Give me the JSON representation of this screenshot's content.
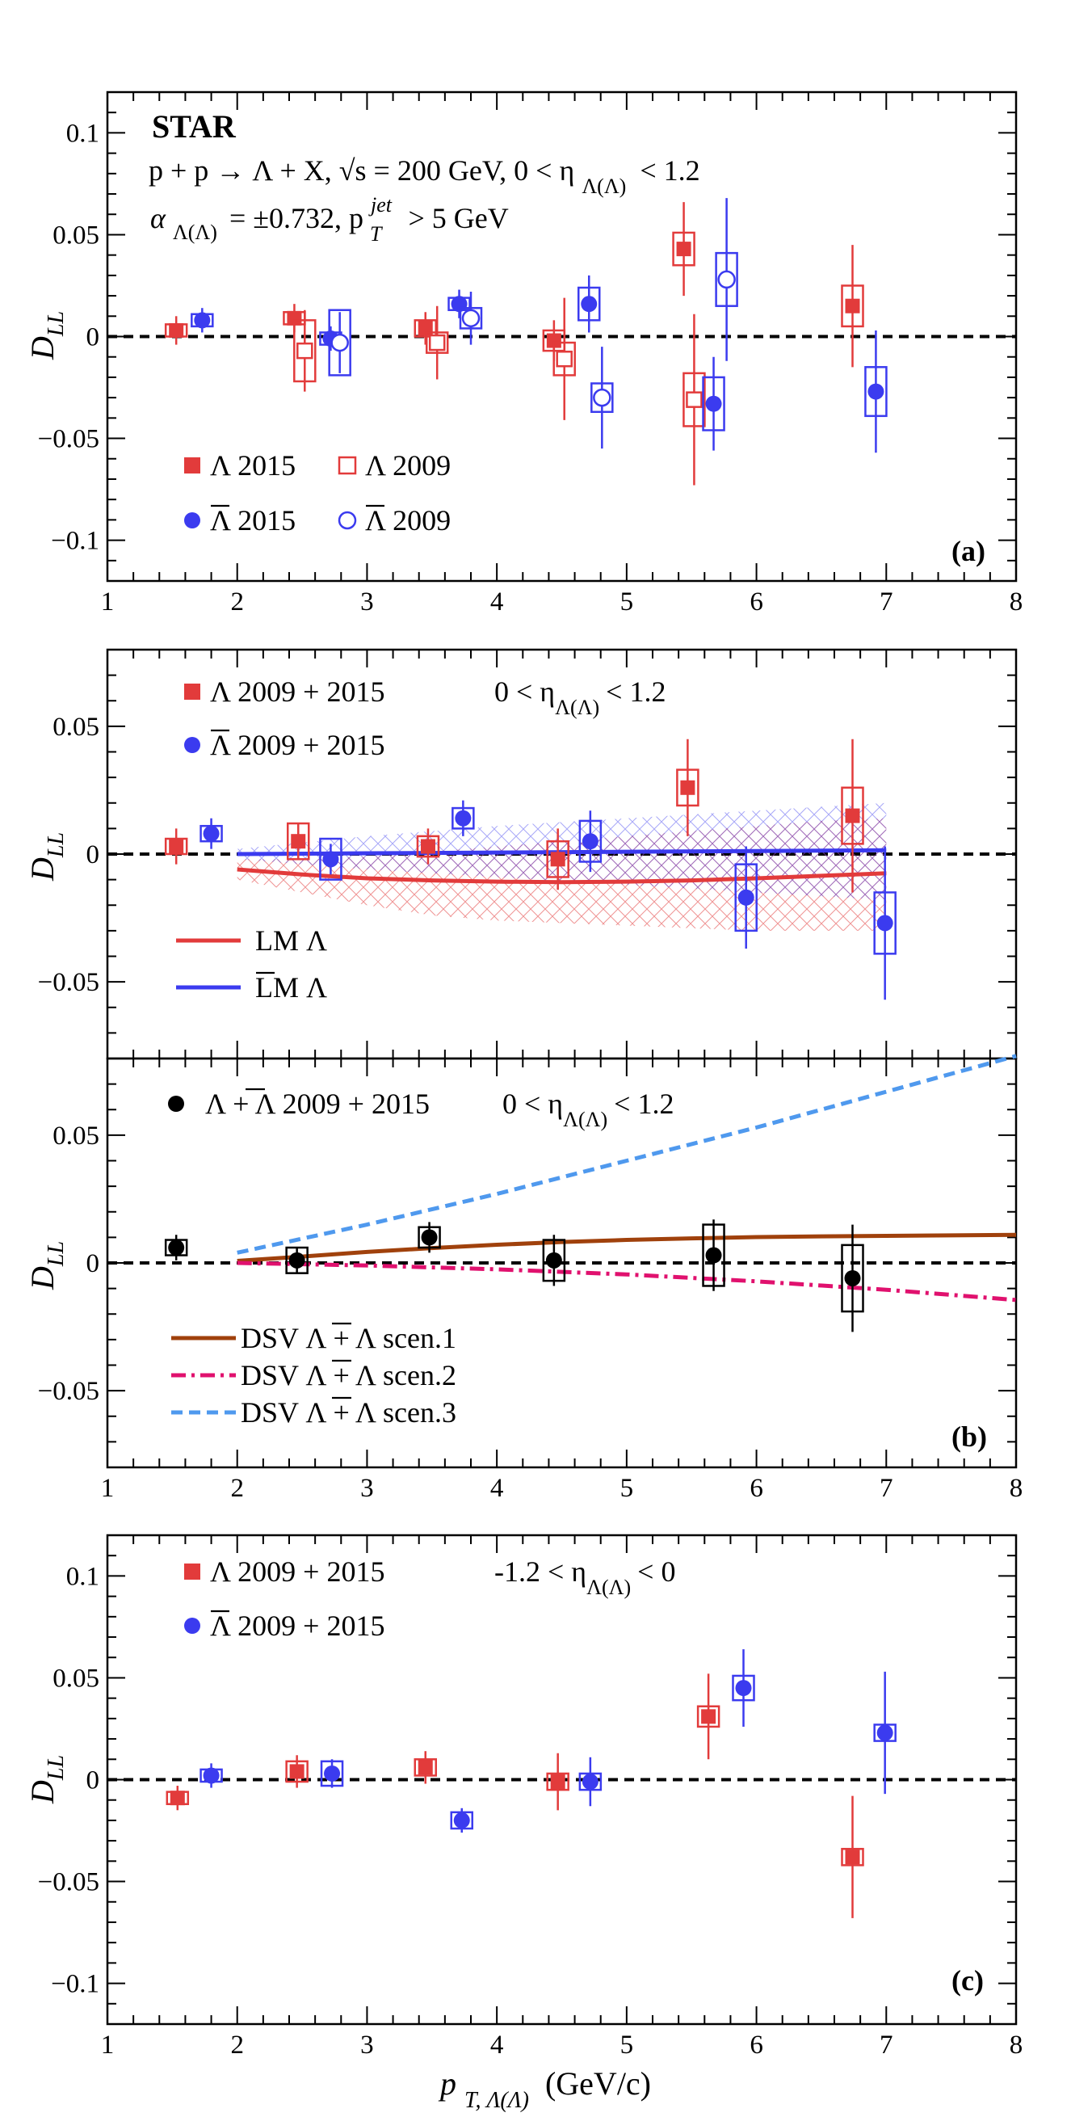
{
  "figure": {
    "experiment_label": "STAR",
    "reaction_label": "p + p → Λ + X, √s = 200 GeV, 0 < η",
    "reaction_label_sub": "Λ(Λ)",
    "reaction_label_end": "< 1.2",
    "analyzing_power_label": "α",
    "analyzing_power_sub": "Λ(Λ)",
    "analyzing_power_text": "= ±0.732, p",
    "jet_label_sup": "jet",
    "jet_label_sub": "T",
    "jet_label_end": "> 5 GeV",
    "xlabel": "p",
    "xlabel_sub": "T, Λ(Λ)",
    "xlabel_unit": "(GeV/c)",
    "ylabel": "D",
    "ylabel_sub": "LL",
    "colors": {
      "lambda": "#e23b3b",
      "antilambda": "#3b3bef",
      "combined": "#000000",
      "lm_lambda": "#e23b3b",
      "lm_antilambda": "#3b3bef",
      "dsv1": "#a0410c",
      "dsv2": "#e0116e",
      "dsv3": "#4f99ee"
    }
  },
  "chart_data": [
    {
      "type": "scatter",
      "panel": "(a)",
      "xlim": [
        1,
        8
      ],
      "ylim": [
        -0.12,
        0.12
      ],
      "x_ticks": [
        1,
        2,
        3,
        4,
        5,
        6,
        7,
        8
      ],
      "y_ticks": [
        -0.1,
        -0.05,
        0,
        0.05,
        0.1
      ],
      "y_tick_labels": [
        "−0.1",
        "−0.05",
        "0",
        "0.05",
        "0.1"
      ],
      "series": [
        {
          "name": "Λ 2015",
          "marker": "filled-square",
          "color": "#e23b3b",
          "points": [
            {
              "x": 1.53,
              "y": 0.003,
              "err": 0.007,
              "sys": 0.003
            },
            {
              "x": 2.44,
              "y": 0.009,
              "err": 0.007,
              "sys": 0.003
            },
            {
              "x": 3.45,
              "y": 0.004,
              "err": 0.008,
              "sys": 0.004
            },
            {
              "x": 4.44,
              "y": -0.002,
              "err": 0.01,
              "sys": 0.005
            },
            {
              "x": 5.44,
              "y": 0.043,
              "err": 0.023,
              "sys": 0.008
            },
            {
              "x": 6.74,
              "y": 0.015,
              "err": 0.03,
              "sys": 0.01
            }
          ]
        },
        {
          "name": "Λ 2009",
          "marker": "open-square",
          "color": "#e23b3b",
          "points": [
            {
              "x": 2.52,
              "y": -0.007,
              "err": 0.02,
              "sys": 0.015
            },
            {
              "x": 3.54,
              "y": -0.003,
              "err": 0.018,
              "sys": 0.005
            },
            {
              "x": 4.52,
              "y": -0.011,
              "err": 0.03,
              "sys": 0.008
            },
            {
              "x": 5.52,
              "y": -0.031,
              "err": 0.042,
              "sys": 0.013
            }
          ]
        },
        {
          "name": "Λ 2015",
          "marker": "filled-circle",
          "color": "#3b3bef",
          "overline": true,
          "points": [
            {
              "x": 1.73,
              "y": 0.008,
              "err": 0.006,
              "sys": 0.003
            },
            {
              "x": 2.72,
              "y": -0.001,
              "err": 0.006,
              "sys": 0.003
            },
            {
              "x": 3.71,
              "y": 0.016,
              "err": 0.007,
              "sys": 0.003
            },
            {
              "x": 4.71,
              "y": 0.016,
              "err": 0.014,
              "sys": 0.008
            },
            {
              "x": 5.67,
              "y": -0.033,
              "err": 0.023,
              "sys": 0.013
            },
            {
              "x": 6.92,
              "y": -0.027,
              "err": 0.03,
              "sys": 0.012
            }
          ]
        },
        {
          "name": "Λ 2009",
          "marker": "open-circle",
          "color": "#3b3bef",
          "overline": true,
          "points": [
            {
              "x": 2.79,
              "y": -0.003,
              "err": 0.015,
              "sys": 0.016
            },
            {
              "x": 3.8,
              "y": 0.009,
              "err": 0.013,
              "sys": 0.005
            },
            {
              "x": 4.81,
              "y": -0.03,
              "err": 0.025,
              "sys": 0.007
            },
            {
              "x": 5.77,
              "y": 0.028,
              "err": 0.04,
              "sys": 0.013
            }
          ]
        }
      ],
      "legend_placement": "bottom-left"
    },
    {
      "type": "scatter",
      "panel": "(b) upper",
      "xlim": [
        1,
        8
      ],
      "ylim": [
        -0.08,
        0.08
      ],
      "y_ticks": [
        -0.05,
        0,
        0.05
      ],
      "y_tick_labels": [
        "−0.05",
        "0",
        "0.05"
      ],
      "eta_label": "0 < η",
      "eta_sub": "Λ(Λ)",
      "eta_end": "< 1.2",
      "series": [
        {
          "name": "Λ 2009 + 2015",
          "marker": "filled-square",
          "color": "#e23b3b",
          "points": [
            {
              "x": 1.53,
              "y": 0.003,
              "err": 0.007,
              "sys": 0.003
            },
            {
              "x": 2.47,
              "y": 0.005,
              "err": 0.007,
              "sys": 0.007
            },
            {
              "x": 3.47,
              "y": 0.003,
              "err": 0.007,
              "sys": 0.004
            },
            {
              "x": 4.47,
              "y": -0.002,
              "err": 0.012,
              "sys": 0.007
            },
            {
              "x": 5.47,
              "y": 0.026,
              "err": 0.019,
              "sys": 0.007
            },
            {
              "x": 6.74,
              "y": 0.015,
              "err": 0.03,
              "sys": 0.011
            }
          ]
        },
        {
          "name": "Λ 2009 + 2015",
          "marker": "filled-circle",
          "color": "#3b3bef",
          "overline": true,
          "points": [
            {
              "x": 1.8,
              "y": 0.008,
              "err": 0.006,
              "sys": 0.003
            },
            {
              "x": 2.72,
              "y": -0.002,
              "err": 0.006,
              "sys": 0.008
            },
            {
              "x": 3.74,
              "y": 0.014,
              "err": 0.007,
              "sys": 0.004
            },
            {
              "x": 4.72,
              "y": 0.005,
              "err": 0.012,
              "sys": 0.008
            },
            {
              "x": 5.92,
              "y": -0.017,
              "err": 0.02,
              "sys": 0.013
            },
            {
              "x": 6.99,
              "y": -0.027,
              "err": 0.03,
              "sys": 0.012
            }
          ]
        }
      ],
      "curves": [
        {
          "name": "LM Λ",
          "color": "#e23b3b",
          "x": [
            2.0,
            2.5,
            3.0,
            3.5,
            4.0,
            4.5,
            5.0,
            5.5,
            6.0,
            6.5,
            7.0
          ],
          "y": [
            -0.006,
            -0.008,
            -0.0095,
            -0.0103,
            -0.0108,
            -0.011,
            -0.0108,
            -0.0103,
            -0.0095,
            -0.0085,
            -0.0075
          ],
          "band_low": [
            -0.01,
            -0.015,
            -0.02,
            -0.024,
            -0.026,
            -0.027,
            -0.028,
            -0.029,
            -0.03,
            -0.03,
            -0.03
          ],
          "band_high": [
            -0.002,
            -0.002,
            -0.001,
            0.001,
            0.003,
            0.005,
            0.007,
            0.009,
            0.011,
            0.013,
            0.014
          ]
        },
        {
          "name": "LM Λ",
          "color": "#3b3bef",
          "overline": true,
          "x": [
            2.0,
            3.0,
            4.0,
            5.0,
            6.0,
            7.0
          ],
          "y": [
            0.0,
            0.0003,
            0.0006,
            0.0009,
            0.0012,
            0.0015
          ],
          "band_low": [
            -0.002,
            -0.006,
            -0.009,
            -0.012,
            -0.015,
            -0.018
          ],
          "band_high": [
            0.002,
            0.007,
            0.011,
            0.014,
            0.017,
            0.02
          ]
        }
      ],
      "legend_placement": "top-left and bottom-left"
    },
    {
      "type": "scatter",
      "panel": "(b)",
      "xlim": [
        1,
        8
      ],
      "ylim": [
        -0.08,
        0.08
      ],
      "x_ticks": [
        1,
        2,
        3,
        4,
        5,
        6,
        7,
        8
      ],
      "y_ticks": [
        -0.05,
        0,
        0.05
      ],
      "y_tick_labels": [
        "−0.05",
        "0",
        "0.05"
      ],
      "legend_label": "Λ + Λ 2009 + 2015",
      "eta_label": "0 < η",
      "eta_sub": "Λ(Λ)",
      "eta_end": "< 1.2",
      "series": [
        {
          "name": "Λ + Λ 2009 + 2015",
          "marker": "filled-circle",
          "color": "#000000",
          "points": [
            {
              "x": 1.53,
              "y": 0.006,
              "err": 0.005,
              "sys": 0.003
            },
            {
              "x": 2.46,
              "y": 0.001,
              "err": 0.005,
              "sys": 0.005
            },
            {
              "x": 3.48,
              "y": 0.01,
              "err": 0.006,
              "sys": 0.004
            },
            {
              "x": 4.44,
              "y": 0.001,
              "err": 0.01,
              "sys": 0.008
            },
            {
              "x": 5.67,
              "y": 0.003,
              "err": 0.014,
              "sys": 0.012
            },
            {
              "x": 6.74,
              "y": -0.006,
              "err": 0.021,
              "sys": 0.013
            }
          ]
        }
      ],
      "curves": [
        {
          "name": "DSV Λ + Λ scen.1",
          "style": "solid",
          "color": "#a0410c",
          "x": [
            2.0,
            2.5,
            3.0,
            3.5,
            4.0,
            4.5,
            5.0,
            5.5,
            6.0,
            6.5,
            7.0,
            7.5,
            8.0
          ],
          "y": [
            0.0008,
            0.0025,
            0.0043,
            0.0058,
            0.0071,
            0.0082,
            0.009,
            0.0096,
            0.0101,
            0.0104,
            0.0106,
            0.0108,
            0.011
          ]
        },
        {
          "name": "DSV Λ + Λ scen.2",
          "style": "dash-dot",
          "color": "#e0116e",
          "x": [
            2.0,
            3.0,
            4.0,
            5.0,
            6.0,
            7.0,
            8.0
          ],
          "y": [
            0.0,
            -0.001,
            -0.0025,
            -0.0045,
            -0.0072,
            -0.0105,
            -0.0145
          ]
        },
        {
          "name": "DSV Λ + Λ scen.3",
          "style": "dashed",
          "color": "#4f99ee",
          "x": [
            2.0,
            3.0,
            4.0,
            5.0,
            6.0,
            7.0,
            8.0
          ],
          "y": [
            0.004,
            0.015,
            0.027,
            0.04,
            0.053,
            0.067,
            0.081
          ]
        }
      ],
      "legend_placement": "bottom-left"
    },
    {
      "type": "scatter",
      "panel": "(c)",
      "xlim": [
        1,
        8
      ],
      "ylim": [
        -0.12,
        0.12
      ],
      "x_ticks": [
        1,
        2,
        3,
        4,
        5,
        6,
        7,
        8
      ],
      "y_ticks": [
        -0.1,
        -0.05,
        0,
        0.05,
        0.1
      ],
      "y_tick_labels": [
        "−0.1",
        "−0.05",
        "0",
        "0.05",
        "0.1"
      ],
      "eta_label": "-1.2 < η",
      "eta_sub": "Λ(Λ)",
      "eta_end": "< 0",
      "series": [
        {
          "name": "Λ 2009 + 2015",
          "marker": "filled-square",
          "color": "#e23b3b",
          "points": [
            {
              "x": 1.54,
              "y": -0.009,
              "err": 0.006,
              "sys": 0.003
            },
            {
              "x": 2.46,
              "y": 0.004,
              "err": 0.008,
              "sys": 0.005
            },
            {
              "x": 3.45,
              "y": 0.006,
              "err": 0.008,
              "sys": 0.004
            },
            {
              "x": 4.47,
              "y": -0.001,
              "err": 0.014,
              "sys": 0.004
            },
            {
              "x": 5.63,
              "y": 0.031,
              "err": 0.021,
              "sys": 0.005
            },
            {
              "x": 6.74,
              "y": -0.038,
              "err": 0.03,
              "sys": 0.004
            }
          ]
        },
        {
          "name": "Λ 2009 + 2015",
          "marker": "filled-circle",
          "color": "#3b3bef",
          "overline": true,
          "points": [
            {
              "x": 1.8,
              "y": 0.002,
              "err": 0.006,
              "sys": 0.003
            },
            {
              "x": 2.73,
              "y": 0.003,
              "err": 0.007,
              "sys": 0.006
            },
            {
              "x": 3.73,
              "y": -0.02,
              "err": 0.006,
              "sys": 0.004
            },
            {
              "x": 4.72,
              "y": -0.001,
              "err": 0.012,
              "sys": 0.004
            },
            {
              "x": 5.9,
              "y": 0.045,
              "err": 0.019,
              "sys": 0.006
            },
            {
              "x": 6.99,
              "y": 0.023,
              "err": 0.03,
              "sys": 0.004
            }
          ]
        }
      ],
      "legend_placement": "top-left"
    }
  ]
}
